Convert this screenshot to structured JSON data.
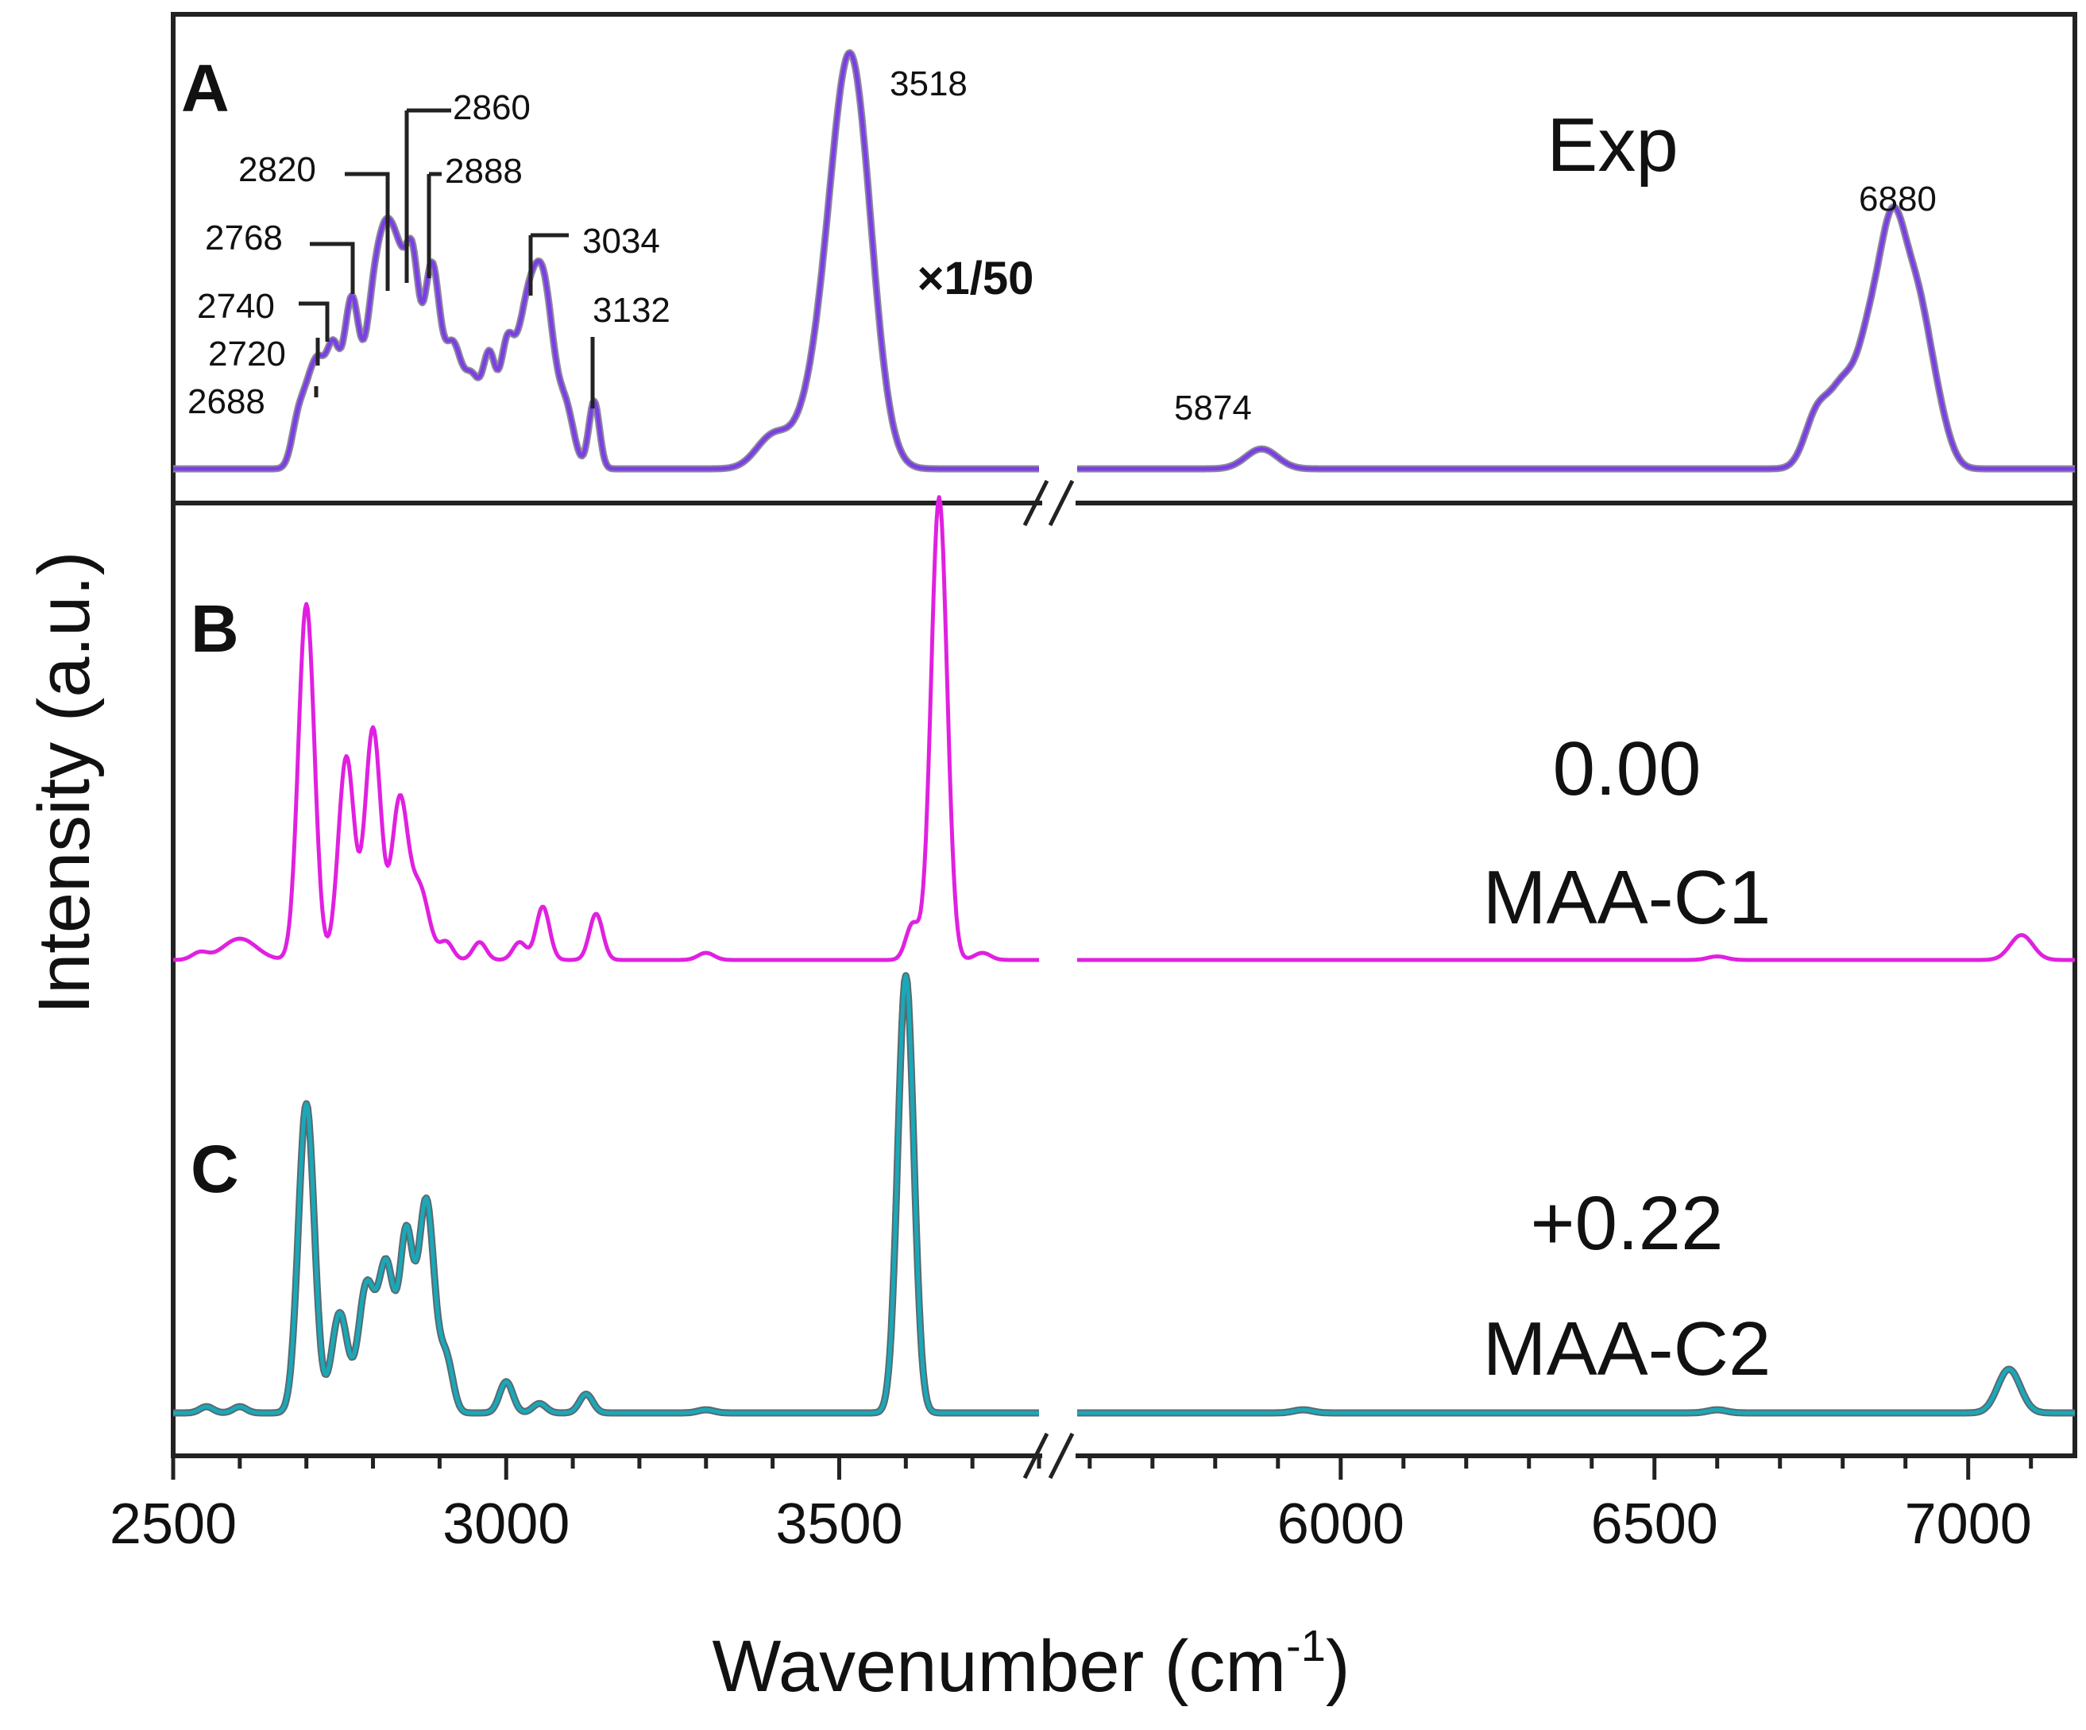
{
  "chart_data": {
    "type": "line",
    "xlabel": "Wavenumber (cm",
    "xlabel_sup": "-1",
    "xlabel_close": ")",
    "ylabel": "Intensity (a.u.)",
    "x_axis": {
      "broken": true,
      "segments": [
        [
          2500,
          3800
        ],
        [
          5580,
          7170
        ]
      ],
      "ticks": [
        2500,
        3000,
        3500,
        6000,
        6500,
        7000
      ],
      "tick_labels": [
        "2500",
        "3000",
        "3500",
        "6000",
        "6500",
        "7000"
      ],
      "minor_tick_step": 100
    },
    "grid": false,
    "panels": [
      {
        "letter": "A",
        "tag": "Exp",
        "note": "×1/50",
        "color": "#7b3fe4",
        "outline": "#8a8a9a",
        "peak_labels": [
          "2688",
          "2720",
          "2740",
          "2768",
          "2820",
          "2860",
          "2888",
          "3034",
          "3132",
          "3518",
          "5874",
          "6880"
        ],
        "series_peaks": [
          [
            2688,
            0.12,
            10
          ],
          [
            2705,
            0.15,
            10
          ],
          [
            2720,
            0.2,
            10
          ],
          [
            2740,
            0.27,
            10
          ],
          [
            2768,
            0.42,
            12
          ],
          [
            2800,
            0.36,
            12
          ],
          [
            2820,
            0.44,
            12
          ],
          [
            2840,
            0.4,
            12
          ],
          [
            2860,
            0.43,
            10
          ],
          [
            2888,
            0.49,
            12
          ],
          [
            2920,
            0.3,
            14
          ],
          [
            2950,
            0.2,
            12
          ],
          [
            2975,
            0.26,
            10
          ],
          [
            3000,
            0.22,
            10
          ],
          [
            3034,
            0.42,
            20
          ],
          [
            3060,
            0.28,
            14
          ],
          [
            3090,
            0.14,
            12
          ],
          [
            3132,
            0.17,
            8
          ],
          [
            3400,
            0.08,
            25
          ],
          [
            3470,
            0.16,
            30
          ],
          [
            3518,
            1.0,
            30
          ],
          [
            5874,
            0.05,
            25
          ],
          [
            6760,
            0.14,
            20
          ],
          [
            6800,
            0.18,
            20
          ],
          [
            6840,
            0.26,
            20
          ],
          [
            6880,
            0.58,
            22
          ],
          [
            6920,
            0.32,
            20
          ],
          [
            6950,
            0.12,
            20
          ]
        ]
      },
      {
        "letter": "B",
        "tag": "0.00",
        "tag2": "MAA-C1",
        "color": "#e020e0",
        "outline": "",
        "series_peaks": [
          [
            2540,
            0.02,
            12
          ],
          [
            2600,
            0.06,
            25
          ],
          [
            2700,
            1.0,
            12
          ],
          [
            2760,
            0.57,
            12
          ],
          [
            2800,
            0.65,
            12
          ],
          [
            2840,
            0.44,
            12
          ],
          [
            2870,
            0.2,
            14
          ],
          [
            2910,
            0.05,
            10
          ],
          [
            2960,
            0.05,
            10
          ],
          [
            3020,
            0.05,
            10
          ],
          [
            3055,
            0.15,
            10
          ],
          [
            3135,
            0.13,
            10
          ],
          [
            3300,
            0.02,
            12
          ],
          [
            3610,
            0.1,
            10
          ],
          [
            3650,
            1.3,
            12
          ],
          [
            3715,
            0.02,
            12
          ],
          [
            6600,
            0.01,
            15
          ],
          [
            7085,
            0.07,
            18
          ]
        ]
      },
      {
        "letter": "C",
        "tag": "+0.22",
        "tag2": "MAA-C2",
        "color": "#1aa8b8",
        "outline": "#5a6a70",
        "series_peaks": [
          [
            2550,
            0.02,
            10
          ],
          [
            2600,
            0.02,
            10
          ],
          [
            2700,
            0.99,
            12
          ],
          [
            2750,
            0.32,
            12
          ],
          [
            2790,
            0.4,
            12
          ],
          [
            2820,
            0.47,
            12
          ],
          [
            2850,
            0.55,
            10
          ],
          [
            2880,
            0.68,
            12
          ],
          [
            2910,
            0.17,
            10
          ],
          [
            3000,
            0.1,
            10
          ],
          [
            3050,
            0.03,
            10
          ],
          [
            3120,
            0.06,
            10
          ],
          [
            3300,
            0.01,
            12
          ],
          [
            3600,
            1.4,
            12
          ],
          [
            7065,
            0.14,
            18
          ],
          [
            6600,
            0.01,
            15
          ],
          [
            5940,
            0.01,
            15
          ]
        ]
      }
    ]
  }
}
